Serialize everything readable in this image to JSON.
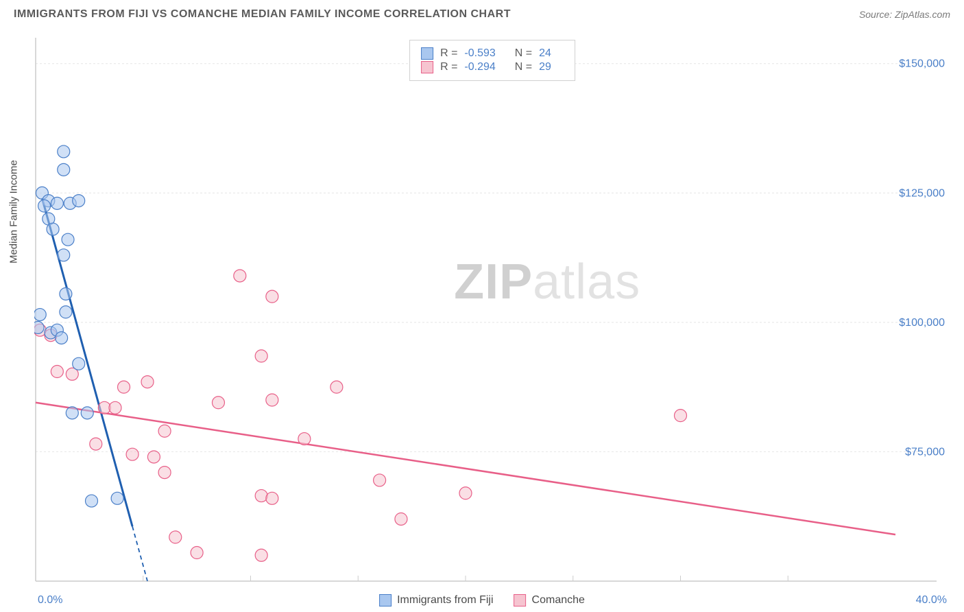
{
  "header": {
    "title": "IMMIGRANTS FROM FIJI VS COMANCHE MEDIAN FAMILY INCOME CORRELATION CHART",
    "source": "Source: ZipAtlas.com"
  },
  "watermark": {
    "bold": "ZIP",
    "light": "atlas"
  },
  "chart": {
    "type": "scatter",
    "ylabel": "Median Family Income",
    "xlim": [
      0,
      40
    ],
    "ylim": [
      50000,
      155000
    ],
    "xmin_label": "0.0%",
    "xmax_label": "40.0%",
    "ytick_values": [
      75000,
      100000,
      125000,
      150000
    ],
    "ytick_labels": [
      "$75,000",
      "$100,000",
      "$125,000",
      "$150,000"
    ],
    "xtick_values": [
      5,
      10,
      15,
      20,
      25,
      30,
      35
    ],
    "grid_color": "#e5e5e5",
    "axis_color": "#cccccc",
    "background_color": "#ffffff",
    "tick_label_color": "#4a7fc8",
    "tick_label_fontsize": 16,
    "marker_radius": 9,
    "marker_opacity": 0.55,
    "marker_stroke_width": 1.2,
    "series": [
      {
        "name": "Immigrants from Fiji",
        "fill_color": "#a9c7ef",
        "stroke_color": "#4a7fc8",
        "line_color": "#1f5fb0",
        "line_width": 3,
        "R": "-0.593",
        "N": "24",
        "trend": {
          "x1": 0.3,
          "y1": 124000,
          "x2": 5.2,
          "y2": 50000,
          "dash_after_x": 4.5
        },
        "points": [
          {
            "x": 1.3,
            "y": 133000
          },
          {
            "x": 1.3,
            "y": 129500
          },
          {
            "x": 0.3,
            "y": 125000
          },
          {
            "x": 0.6,
            "y": 123500
          },
          {
            "x": 0.4,
            "y": 122500
          },
          {
            "x": 1.0,
            "y": 123000
          },
          {
            "x": 1.6,
            "y": 123000
          },
          {
            "x": 2.0,
            "y": 123500
          },
          {
            "x": 0.6,
            "y": 120000
          },
          {
            "x": 0.8,
            "y": 118000
          },
          {
            "x": 1.5,
            "y": 116000
          },
          {
            "x": 1.3,
            "y": 113000
          },
          {
            "x": 1.4,
            "y": 105500
          },
          {
            "x": 1.4,
            "y": 102000
          },
          {
            "x": 0.2,
            "y": 101500
          },
          {
            "x": 0.1,
            "y": 99000
          },
          {
            "x": 0.7,
            "y": 98000
          },
          {
            "x": 1.0,
            "y": 98500
          },
          {
            "x": 1.2,
            "y": 97000
          },
          {
            "x": 2.0,
            "y": 92000
          },
          {
            "x": 1.7,
            "y": 82500
          },
          {
            "x": 2.4,
            "y": 82500
          },
          {
            "x": 2.6,
            "y": 65500
          },
          {
            "x": 3.8,
            "y": 66000
          }
        ]
      },
      {
        "name": "Comanche",
        "fill_color": "#f6c4d0",
        "stroke_color": "#e85f88",
        "line_color": "#e85f88",
        "line_width": 2.5,
        "R": "-0.294",
        "N": "29",
        "trend": {
          "x1": 0,
          "y1": 84500,
          "x2": 40,
          "y2": 59000
        },
        "points": [
          {
            "x": 9.5,
            "y": 109000
          },
          {
            "x": 11.0,
            "y": 105000
          },
          {
            "x": 0.2,
            "y": 98500
          },
          {
            "x": 0.7,
            "y": 97500
          },
          {
            "x": 10.5,
            "y": 93500
          },
          {
            "x": 1.0,
            "y": 90500
          },
          {
            "x": 1.7,
            "y": 90000
          },
          {
            "x": 4.1,
            "y": 87500
          },
          {
            "x": 5.2,
            "y": 88500
          },
          {
            "x": 14.0,
            "y": 87500
          },
          {
            "x": 8.5,
            "y": 84500
          },
          {
            "x": 11.0,
            "y": 85000
          },
          {
            "x": 3.2,
            "y": 83500
          },
          {
            "x": 3.7,
            "y": 83500
          },
          {
            "x": 30.0,
            "y": 82000
          },
          {
            "x": 6.0,
            "y": 79000
          },
          {
            "x": 2.8,
            "y": 76500
          },
          {
            "x": 4.5,
            "y": 74500
          },
          {
            "x": 5.5,
            "y": 74000
          },
          {
            "x": 12.5,
            "y": 77500
          },
          {
            "x": 6.0,
            "y": 71000
          },
          {
            "x": 16.0,
            "y": 69500
          },
          {
            "x": 20.0,
            "y": 67000
          },
          {
            "x": 10.5,
            "y": 66500
          },
          {
            "x": 11.0,
            "y": 66000
          },
          {
            "x": 17.0,
            "y": 62000
          },
          {
            "x": 6.5,
            "y": 58500
          },
          {
            "x": 7.5,
            "y": 55500
          },
          {
            "x": 10.5,
            "y": 55000
          }
        ]
      }
    ],
    "bottom_legend": [
      {
        "label": "Immigrants from Fiji",
        "fill": "#a9c7ef",
        "stroke": "#4a7fc8"
      },
      {
        "label": "Comanche",
        "fill": "#f6c4d0",
        "stroke": "#e85f88"
      }
    ]
  }
}
